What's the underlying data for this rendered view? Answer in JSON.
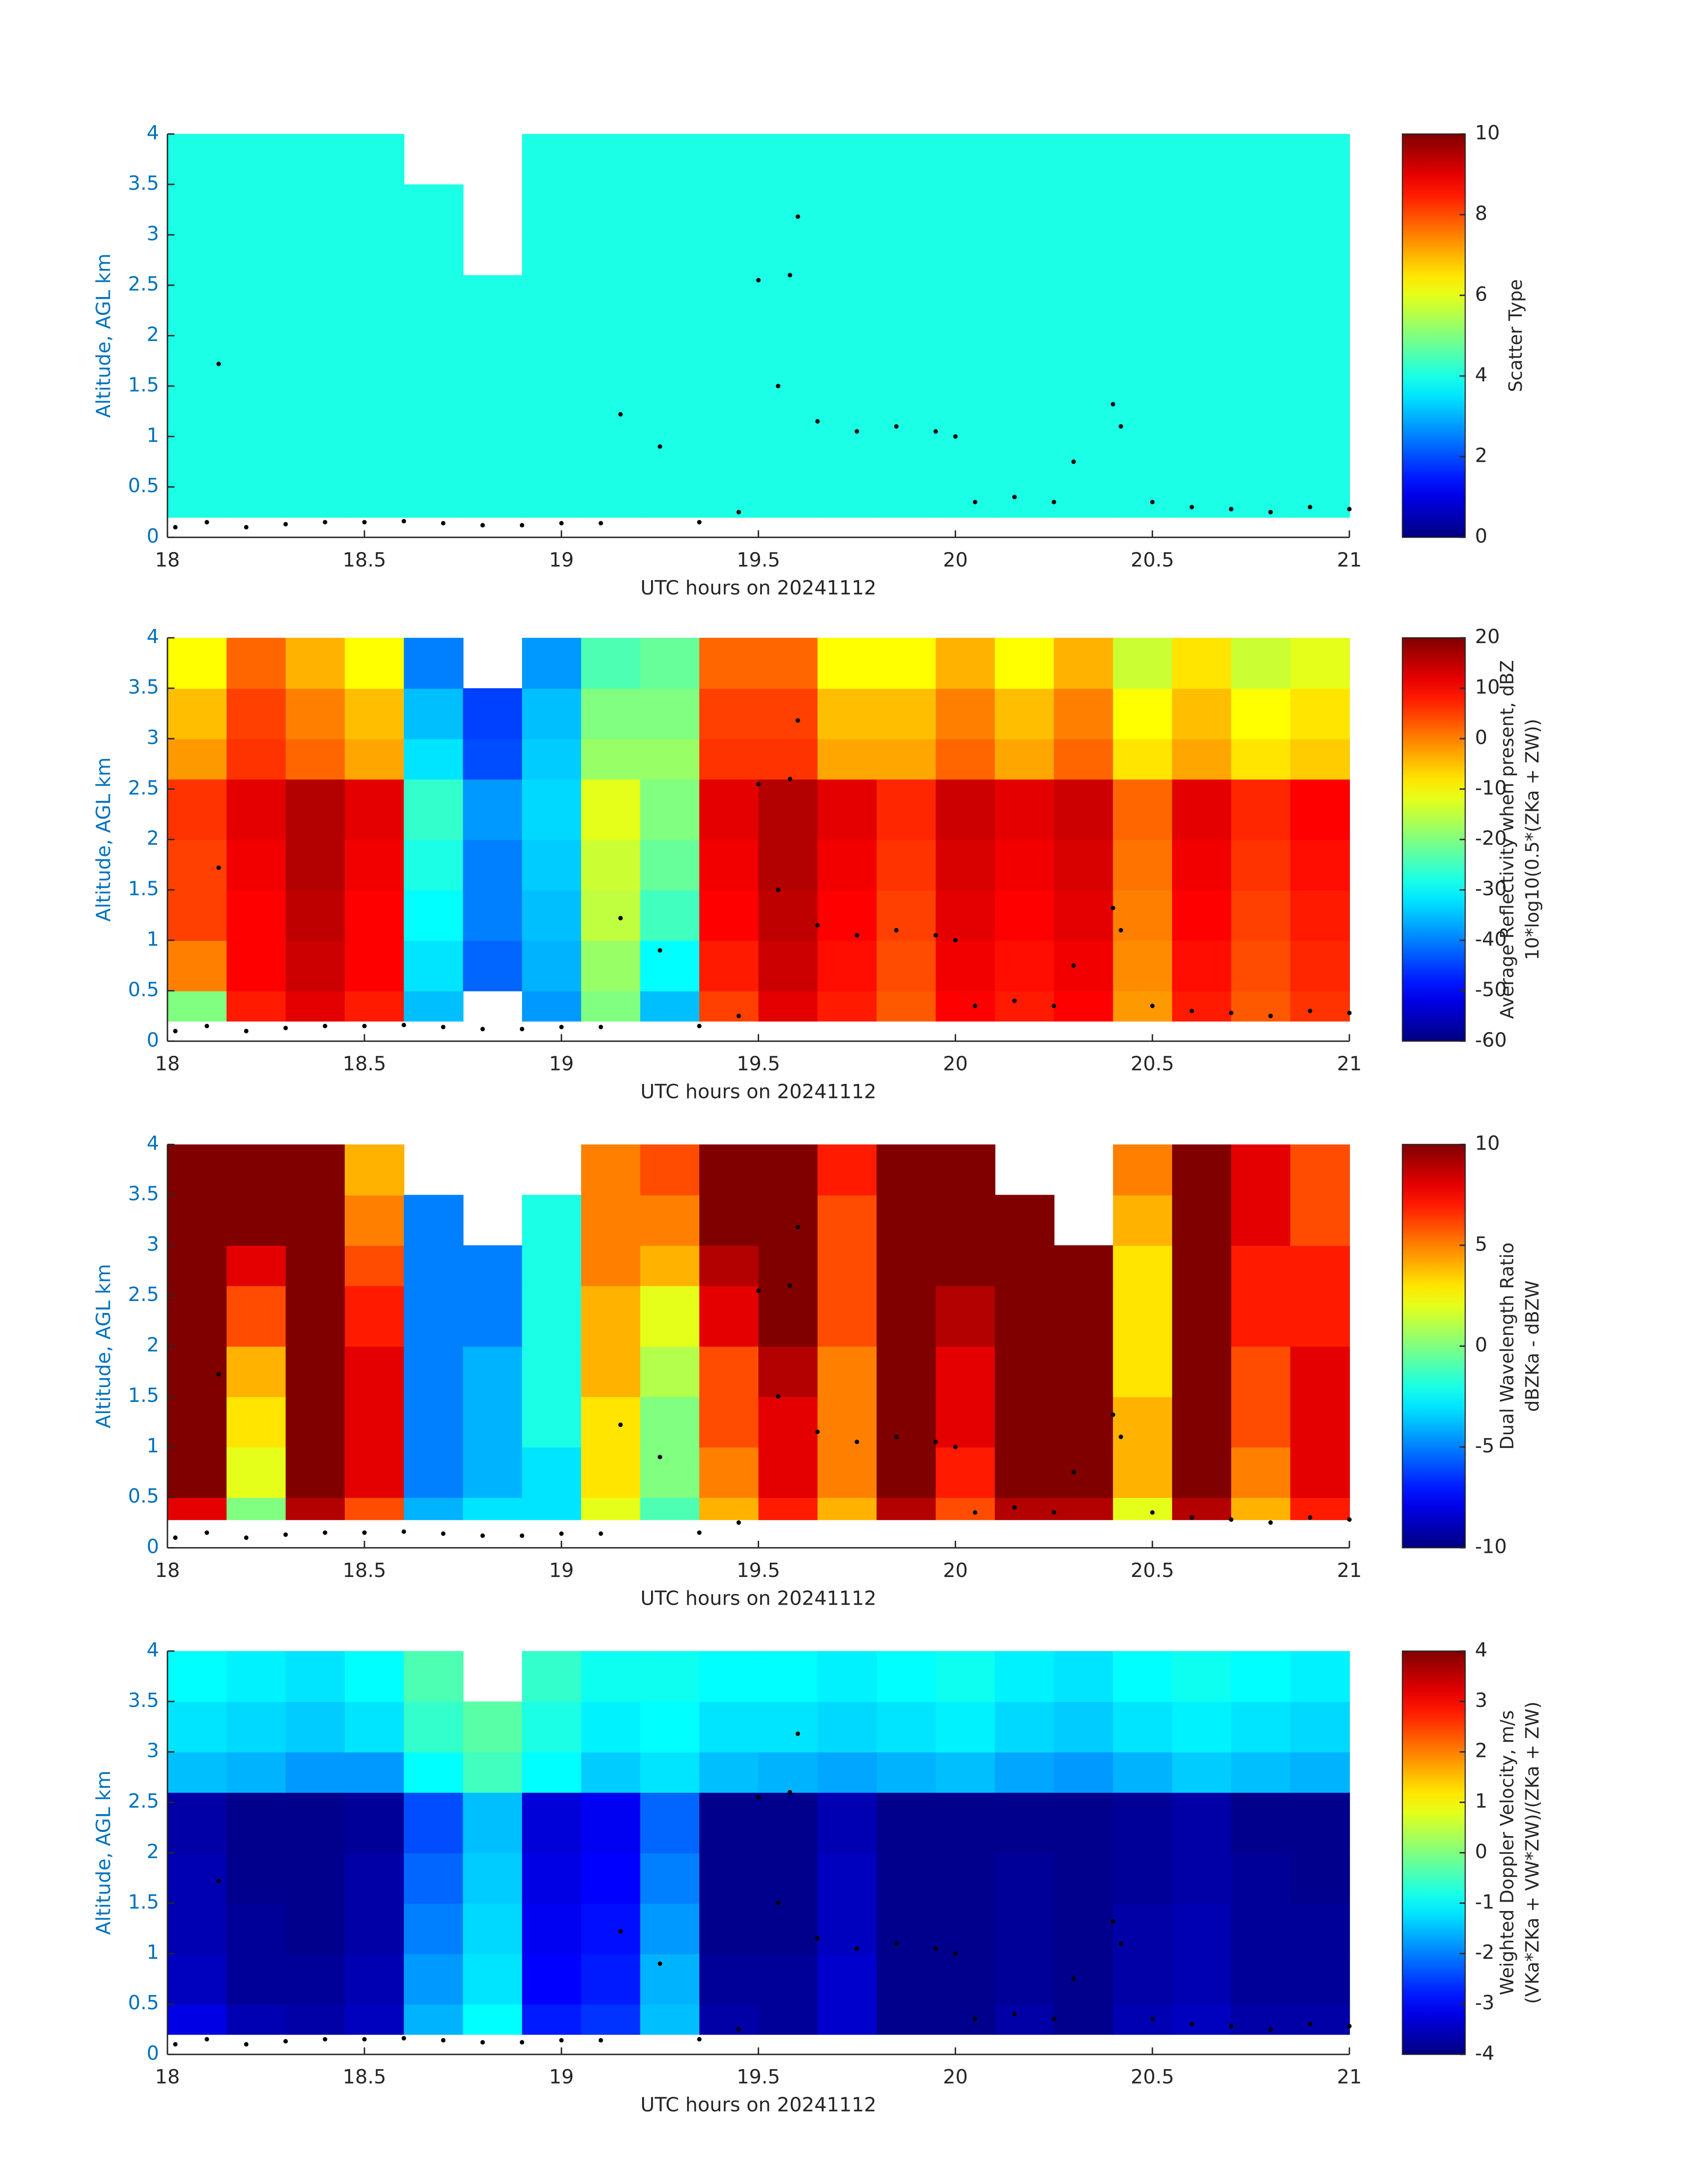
{
  "chart_data": [
    {
      "type": "heatmap",
      "xlabel": "UTC hours on 20241112",
      "ylabel": "Altitude, AGL km",
      "colorbar_label": [
        "Scatter Type"
      ],
      "xlim": [
        18,
        21
      ],
      "xticks": [
        18,
        18.5,
        19,
        19.5,
        20,
        20.5,
        21
      ],
      "ylim": [
        0,
        4
      ],
      "yticks": [
        0,
        0.5,
        1,
        1.5,
        2,
        2.5,
        3,
        3.5,
        4
      ],
      "clim": [
        0,
        10
      ],
      "cticks": [
        0,
        2,
        4,
        6,
        8,
        10
      ],
      "colormap": "jet",
      "x": [
        18,
        18.15,
        18.3,
        18.45,
        18.6,
        18.75,
        18.9,
        19.05,
        19.2,
        19.35,
        19.5,
        19.65,
        19.8,
        19.95,
        20.1,
        20.25,
        20.4,
        20.55,
        20.7,
        20.85,
        21
      ],
      "y": [
        0.2,
        0.5,
        1,
        1.5,
        2,
        2.6,
        3,
        3.5,
        4
      ],
      "z": [
        [
          4,
          4,
          4,
          4,
          4,
          4,
          4,
          4,
          4,
          4,
          4,
          4,
          4,
          4,
          4,
          4,
          4,
          4,
          4,
          4
        ],
        [
          4,
          4,
          4,
          4,
          4,
          4,
          4,
          4,
          4,
          4,
          4,
          4,
          4,
          4,
          4,
          4,
          4,
          4,
          4,
          4
        ],
        [
          4,
          4,
          4,
          4,
          4,
          4,
          4,
          4,
          4,
          4,
          4,
          4,
          4,
          4,
          4,
          4,
          4,
          4,
          4,
          4
        ],
        [
          4,
          4,
          4,
          4,
          4,
          4,
          4,
          4,
          4,
          4,
          4,
          4,
          4,
          4,
          4,
          4,
          4,
          4,
          4,
          4
        ],
        [
          4,
          4,
          4,
          4,
          4,
          4,
          4,
          4,
          4,
          4,
          4,
          4,
          4,
          4,
          4,
          4,
          4,
          4,
          4,
          4
        ],
        [
          4,
          4,
          4,
          4,
          4,
          null,
          4,
          4,
          4,
          4,
          4,
          4,
          4,
          4,
          4,
          4,
          4,
          4,
          4,
          4
        ],
        [
          4,
          4,
          4,
          4,
          4,
          null,
          4,
          4,
          4,
          4,
          4,
          4,
          4,
          4,
          4,
          4,
          4,
          4,
          4,
          4
        ],
        [
          4,
          4,
          4,
          4,
          null,
          null,
          4,
          4,
          4,
          4,
          4,
          4,
          4,
          4,
          4,
          4,
          4,
          4,
          4,
          4
        ]
      ],
      "points": {
        "color": "#000000",
        "x": [
          18.02,
          18.1,
          18.13,
          18.2,
          18.3,
          18.4,
          18.5,
          18.6,
          18.7,
          18.8,
          18.9,
          19.0,
          19.1,
          19.15,
          19.25,
          19.35,
          19.45,
          19.5,
          19.55,
          19.58,
          19.6,
          19.65,
          19.75,
          19.85,
          19.95,
          20.0,
          20.05,
          20.15,
          20.25,
          20.3,
          20.4,
          20.42,
          20.5,
          20.6,
          20.7,
          20.8,
          20.9,
          21.0
        ],
        "y": [
          0.1,
          0.15,
          1.72,
          0.1,
          0.13,
          0.15,
          0.15,
          0.16,
          0.14,
          0.12,
          0.12,
          0.14,
          0.14,
          1.22,
          0.9,
          0.15,
          0.25,
          2.55,
          1.5,
          2.6,
          3.18,
          1.15,
          1.05,
          1.1,
          1.05,
          1.0,
          0.35,
          0.4,
          0.35,
          0.75,
          1.32,
          1.1,
          0.35,
          0.3,
          0.28,
          0.25,
          0.3,
          0.28
        ]
      }
    },
    {
      "type": "heatmap",
      "xlabel": "UTC hours on 20241112",
      "ylabel": "Altitude, AGL km",
      "colorbar_label": [
        "Average Reflectivity when present, dBZ",
        "10*log10(0.5*(ZKa + ZW))"
      ],
      "xlim": [
        18,
        21
      ],
      "xticks": [
        18,
        18.5,
        19,
        19.5,
        20,
        20.5,
        21
      ],
      "ylim": [
        0,
        4
      ],
      "yticks": [
        0,
        0.5,
        1,
        1.5,
        2,
        2.5,
        3,
        3.5,
        4
      ],
      "clim": [
        -60,
        20
      ],
      "cticks": [
        -60,
        -50,
        -40,
        -30,
        -20,
        -10,
        0,
        10,
        20
      ],
      "colormap": "jet",
      "x": [
        18,
        18.15,
        18.3,
        18.45,
        18.6,
        18.75,
        18.9,
        19.05,
        19.2,
        19.35,
        19.5,
        19.65,
        19.8,
        19.95,
        20.1,
        20.25,
        20.4,
        20.55,
        20.7,
        20.85,
        21
      ],
      "y": [
        0.2,
        0.5,
        1,
        1.5,
        2,
        2.6,
        3,
        3.5,
        4
      ],
      "z": [
        [
          -20,
          8,
          12,
          8,
          -35,
          null,
          -38,
          -20,
          -35,
          5,
          12,
          8,
          3,
          10,
          8,
          10,
          -2,
          8,
          3,
          6
        ],
        [
          0,
          10,
          14,
          10,
          -32,
          -42,
          -36,
          -18,
          -30,
          8,
          14,
          9,
          4,
          11,
          9,
          11,
          -1,
          9,
          4,
          7
        ],
        [
          5,
          10,
          15,
          10,
          -30,
          -40,
          -35,
          -15,
          -25,
          10,
          15,
          10,
          5,
          12,
          10,
          12,
          0,
          10,
          5,
          8
        ],
        [
          5,
          11,
          16,
          11,
          -28,
          -40,
          -34,
          -14,
          -22,
          11,
          16,
          11,
          6,
          13,
          11,
          13,
          1,
          11,
          6,
          9
        ],
        [
          6,
          12,
          16,
          12,
          -26,
          -38,
          -33,
          -12,
          -20,
          12,
          16,
          12,
          7,
          14,
          12,
          14,
          2,
          12,
          7,
          10
        ],
        [
          -2,
          6,
          2,
          -3,
          -32,
          -44,
          -34,
          -18,
          -18,
          6,
          6,
          -3,
          -3,
          2,
          -3,
          2,
          -8,
          -3,
          -8,
          -6
        ],
        [
          -5,
          5,
          0,
          -5,
          -35,
          -45,
          -35,
          -20,
          -20,
          5,
          5,
          -5,
          -5,
          0,
          -5,
          0,
          -10,
          -5,
          -10,
          -8
        ],
        [
          -10,
          2,
          -4,
          -10,
          -40,
          null,
          -38,
          -24,
          -22,
          2,
          2,
          -10,
          -10,
          -4,
          -10,
          -4,
          -14,
          -8,
          -14,
          -12
        ]
      ],
      "points": {
        "color": "#000000",
        "x": [
          18.02,
          18.1,
          18.13,
          18.2,
          18.3,
          18.4,
          18.5,
          18.6,
          18.7,
          18.8,
          18.9,
          19.0,
          19.1,
          19.15,
          19.25,
          19.35,
          19.45,
          19.5,
          19.55,
          19.58,
          19.6,
          19.65,
          19.75,
          19.85,
          19.95,
          20.0,
          20.05,
          20.15,
          20.25,
          20.3,
          20.4,
          20.42,
          20.5,
          20.6,
          20.7,
          20.8,
          20.9,
          21.0
        ],
        "y": [
          0.1,
          0.15,
          1.72,
          0.1,
          0.13,
          0.15,
          0.15,
          0.16,
          0.14,
          0.12,
          0.12,
          0.14,
          0.14,
          1.22,
          0.9,
          0.15,
          0.25,
          2.55,
          1.5,
          2.6,
          3.18,
          1.15,
          1.05,
          1.1,
          1.05,
          1.0,
          0.35,
          0.4,
          0.35,
          0.75,
          1.32,
          1.1,
          0.35,
          0.3,
          0.28,
          0.25,
          0.3,
          0.28
        ]
      }
    },
    {
      "type": "heatmap",
      "xlabel": "UTC hours on 20241112",
      "ylabel": "Altitude, AGL km",
      "colorbar_label": [
        "Dual Wavelength Ratio",
        "dBZKa - dBZW"
      ],
      "xlim": [
        18,
        21
      ],
      "xticks": [
        18,
        18.5,
        19,
        19.5,
        20,
        20.5,
        21
      ],
      "ylim": [
        0,
        4
      ],
      "yticks": [
        0,
        0.5,
        1,
        1.5,
        2,
        2.5,
        3,
        3.5,
        4
      ],
      "clim": [
        -10,
        10
      ],
      "cticks": [
        -10,
        -5,
        0,
        5,
        10
      ],
      "colormap": "jet",
      "x": [
        18,
        18.15,
        18.3,
        18.45,
        18.6,
        18.75,
        18.9,
        19.05,
        19.2,
        19.35,
        19.5,
        19.65,
        19.8,
        19.95,
        20.1,
        20.25,
        20.4,
        20.55,
        20.7,
        20.85,
        21
      ],
      "y": [
        0.28,
        0.5,
        1,
        1.5,
        2,
        2.6,
        3,
        3.5,
        4
      ],
      "z": [
        [
          8,
          0,
          9,
          6,
          -4,
          -3,
          -3,
          2,
          -1,
          4,
          7,
          4,
          9,
          6,
          9,
          9,
          2,
          9,
          4,
          7
        ],
        [
          10,
          2,
          10,
          8,
          -5,
          -4,
          -3,
          3,
          0,
          5,
          8,
          5,
          10,
          7,
          10,
          10,
          4,
          10,
          5,
          8
        ],
        [
          10,
          3,
          10,
          8,
          -5,
          -4,
          -2,
          3,
          0,
          6,
          8,
          5,
          10,
          8,
          10,
          10,
          4,
          10,
          6,
          8
        ],
        [
          10,
          4,
          10,
          8,
          -5,
          -4,
          -2,
          4,
          1,
          6,
          9,
          5,
          10,
          8,
          10,
          10,
          3,
          10,
          6,
          8
        ],
        [
          10,
          6,
          10,
          7,
          -5,
          -5,
          -2,
          4,
          2,
          8,
          10,
          6,
          10,
          9,
          10,
          10,
          3,
          10,
          7,
          7
        ],
        [
          10,
          8,
          10,
          6,
          -5,
          -5,
          -2,
          5,
          4,
          9,
          10,
          6,
          10,
          10,
          10,
          10,
          3,
          10,
          7,
          7
        ],
        [
          10,
          10,
          10,
          5,
          -5,
          null,
          -2,
          5,
          5,
          10,
          10,
          6,
          10,
          10,
          10,
          null,
          4,
          10,
          8,
          6
        ],
        [
          10,
          10,
          10,
          4,
          null,
          null,
          null,
          5,
          6,
          10,
          10,
          7,
          10,
          10,
          null,
          null,
          5,
          10,
          8,
          6
        ]
      ],
      "points": {
        "color": "#000000",
        "x": [
          18.02,
          18.1,
          18.13,
          18.2,
          18.3,
          18.4,
          18.5,
          18.6,
          18.7,
          18.8,
          18.9,
          19.0,
          19.1,
          19.15,
          19.25,
          19.35,
          19.45,
          19.5,
          19.55,
          19.58,
          19.6,
          19.65,
          19.75,
          19.85,
          19.95,
          20.0,
          20.05,
          20.15,
          20.25,
          20.3,
          20.4,
          20.42,
          20.5,
          20.6,
          20.7,
          20.8,
          20.9,
          21.0
        ],
        "y": [
          0.1,
          0.15,
          1.72,
          0.1,
          0.13,
          0.15,
          0.15,
          0.16,
          0.14,
          0.12,
          0.12,
          0.14,
          0.14,
          1.22,
          0.9,
          0.15,
          0.25,
          2.55,
          1.5,
          2.6,
          3.18,
          1.15,
          1.05,
          1.1,
          1.05,
          1.0,
          0.35,
          0.4,
          0.35,
          0.75,
          1.32,
          1.1,
          0.35,
          0.3,
          0.28,
          0.25,
          0.3,
          0.28
        ]
      }
    },
    {
      "type": "heatmap",
      "xlabel": "UTC hours on 20241112",
      "ylabel": "Altitude, AGL km",
      "colorbar_label": [
        "Weighted Doppler Velocity, m/s",
        "(VKa*ZKa + VW*ZW)/(ZKa + ZW)"
      ],
      "xlim": [
        18,
        21
      ],
      "xticks": [
        18,
        18.5,
        19,
        19.5,
        20,
        20.5,
        21
      ],
      "ylim": [
        0,
        4
      ],
      "yticks": [
        0,
        0.5,
        1,
        1.5,
        2,
        2.5,
        3,
        3.5,
        4
      ],
      "clim": [
        -4,
        4
      ],
      "cticks": [
        -4,
        -3,
        -2,
        -1,
        0,
        1,
        2,
        3,
        4
      ],
      "colormap": "jet",
      "x": [
        18,
        18.15,
        18.3,
        18.45,
        18.6,
        18.75,
        18.9,
        19.05,
        19.2,
        19.35,
        19.5,
        19.65,
        19.8,
        19.95,
        20.1,
        20.25,
        20.4,
        20.55,
        20.7,
        20.85,
        21
      ],
      "y": [
        0.2,
        0.5,
        1,
        1.5,
        2,
        2.6,
        3,
        3.5,
        4
      ],
      "z": [
        [
          -3.2,
          -3.6,
          -3.7,
          -3.5,
          -1.6,
          -1.0,
          -2.8,
          -2.6,
          -1.5,
          -3.7,
          -3.8,
          -3.4,
          -3.9,
          -3.9,
          -3.7,
          -3.9,
          -3.6,
          -3.5,
          -3.7,
          -3.7
        ],
        [
          -3.5,
          -3.8,
          -3.8,
          -3.6,
          -1.8,
          -1.2,
          -3.0,
          -2.8,
          -1.6,
          -3.8,
          -3.8,
          -3.4,
          -3.9,
          -3.9,
          -3.8,
          -3.9,
          -3.7,
          -3.6,
          -3.8,
          -3.8
        ],
        [
          -3.6,
          -3.8,
          -3.9,
          -3.7,
          -2.0,
          -1.3,
          -3.1,
          -2.9,
          -1.8,
          -3.9,
          -3.9,
          -3.5,
          -3.9,
          -3.9,
          -3.8,
          -3.9,
          -3.7,
          -3.6,
          -3.8,
          -3.8
        ],
        [
          -3.6,
          -3.9,
          -3.9,
          -3.7,
          -2.2,
          -1.4,
          -3.2,
          -3.0,
          -2.0,
          -3.9,
          -3.9,
          -3.5,
          -3.9,
          -3.9,
          -3.8,
          -3.9,
          -3.8,
          -3.7,
          -3.8,
          -3.9
        ],
        [
          -3.7,
          -3.9,
          -3.9,
          -3.8,
          -2.4,
          -1.5,
          -3.3,
          -3.1,
          -2.2,
          -3.9,
          -3.9,
          -3.6,
          -3.9,
          -3.9,
          -3.9,
          -3.9,
          -3.8,
          -3.7,
          -3.9,
          -3.9
        ],
        [
          -1.5,
          -1.6,
          -1.8,
          -1.8,
          -1.0,
          -0.5,
          -1.0,
          -1.4,
          -1.2,
          -1.5,
          -1.6,
          -1.7,
          -1.6,
          -1.5,
          -1.7,
          -1.8,
          -1.6,
          -1.4,
          -1.5,
          -1.6
        ],
        [
          -1.2,
          -1.3,
          -1.4,
          -1.2,
          -0.6,
          -0.3,
          -0.8,
          -1.1,
          -1.0,
          -1.2,
          -1.2,
          -1.3,
          -1.2,
          -1.1,
          -1.3,
          -1.4,
          -1.2,
          -1.1,
          -1.2,
          -1.3
        ],
        [
          -1.0,
          -1.1,
          -1.2,
          -1.0,
          -0.4,
          null,
          -0.6,
          -0.9,
          -0.9,
          -1.0,
          -1.0,
          -1.1,
          -1.0,
          -0.9,
          -1.1,
          -1.2,
          -1.0,
          -0.9,
          -1.0,
          -1.1
        ]
      ],
      "points": {
        "color": "#000000",
        "x": [
          18.02,
          18.1,
          18.13,
          18.2,
          18.3,
          18.4,
          18.5,
          18.6,
          18.7,
          18.8,
          18.9,
          19.0,
          19.1,
          19.15,
          19.25,
          19.35,
          19.45,
          19.5,
          19.55,
          19.58,
          19.6,
          19.65,
          19.75,
          19.85,
          19.95,
          20.0,
          20.05,
          20.15,
          20.25,
          20.3,
          20.4,
          20.42,
          20.5,
          20.6,
          20.7,
          20.8,
          20.9,
          21.0
        ],
        "y": [
          0.1,
          0.15,
          1.72,
          0.1,
          0.13,
          0.15,
          0.15,
          0.16,
          0.14,
          0.12,
          0.12,
          0.14,
          0.14,
          1.22,
          0.9,
          0.15,
          0.25,
          2.55,
          1.5,
          2.6,
          3.18,
          1.15,
          1.05,
          1.1,
          1.05,
          1.0,
          0.35,
          0.4,
          0.35,
          0.75,
          1.32,
          1.1,
          0.35,
          0.3,
          0.28,
          0.25,
          0.3,
          0.28
        ]
      }
    }
  ]
}
